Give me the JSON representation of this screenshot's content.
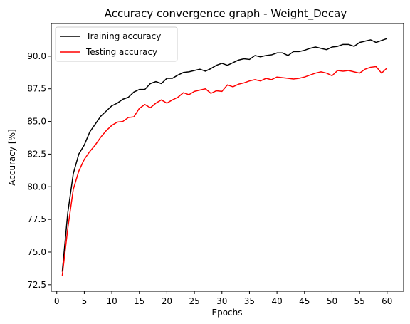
{
  "chart_data": {
    "type": "line",
    "title": "Accuracy convergence graph - Weight_Decay",
    "xlabel": "Epochs",
    "ylabel": "Accuracy [%]",
    "xlim": [
      -1,
      63
    ],
    "ylim": [
      72.0,
      92.5
    ],
    "xticks": [
      0,
      5,
      10,
      15,
      20,
      25,
      30,
      35,
      40,
      45,
      50,
      55,
      60
    ],
    "yticks": [
      72.5,
      75.0,
      77.5,
      80.0,
      82.5,
      85.0,
      87.5,
      90.0
    ],
    "legend_position": "top-left",
    "grid": false,
    "x": [
      1,
      2,
      3,
      4,
      5,
      6,
      7,
      8,
      9,
      10,
      11,
      12,
      13,
      14,
      15,
      16,
      17,
      18,
      19,
      20,
      21,
      22,
      23,
      24,
      25,
      26,
      27,
      28,
      29,
      30,
      31,
      32,
      33,
      34,
      35,
      36,
      37,
      38,
      39,
      40,
      41,
      42,
      43,
      44,
      45,
      46,
      47,
      48,
      49,
      50,
      51,
      52,
      53,
      54,
      55,
      56,
      57,
      58,
      59,
      60
    ],
    "series": [
      {
        "name": "Training accuracy",
        "color": "#000000",
        "values": [
          73.5,
          78.0,
          81.0,
          82.5,
          83.2,
          84.2,
          84.8,
          85.4,
          85.8,
          86.2,
          86.4,
          86.7,
          86.85,
          87.25,
          87.45,
          87.45,
          87.9,
          88.05,
          87.9,
          88.3,
          88.3,
          88.55,
          88.75,
          88.8,
          88.9,
          89.0,
          88.85,
          89.05,
          89.3,
          89.45,
          89.3,
          89.5,
          89.7,
          89.8,
          89.75,
          90.05,
          89.95,
          90.05,
          90.1,
          90.25,
          90.25,
          90.05,
          90.35,
          90.35,
          90.45,
          90.6,
          90.7,
          90.6,
          90.5,
          90.7,
          90.75,
          90.9,
          90.9,
          90.75,
          91.05,
          91.15,
          91.25,
          91.05,
          91.2,
          91.35
        ]
      },
      {
        "name": "Testing accuracy",
        "color": "#ff0000",
        "values": [
          73.2,
          76.8,
          79.8,
          81.2,
          82.1,
          82.7,
          83.2,
          83.8,
          84.3,
          84.7,
          84.95,
          85.0,
          85.3,
          85.35,
          86.0,
          86.3,
          86.05,
          86.4,
          86.65,
          86.4,
          86.65,
          86.85,
          87.2,
          87.05,
          87.3,
          87.4,
          87.5,
          87.15,
          87.35,
          87.3,
          87.8,
          87.65,
          87.85,
          87.95,
          88.1,
          88.2,
          88.1,
          88.3,
          88.2,
          88.4,
          88.35,
          88.3,
          88.25,
          88.3,
          88.4,
          88.55,
          88.7,
          88.8,
          88.7,
          88.5,
          88.9,
          88.85,
          88.9,
          88.8,
          88.7,
          89.0,
          89.15,
          89.2,
          88.7,
          89.1
        ]
      }
    ]
  }
}
